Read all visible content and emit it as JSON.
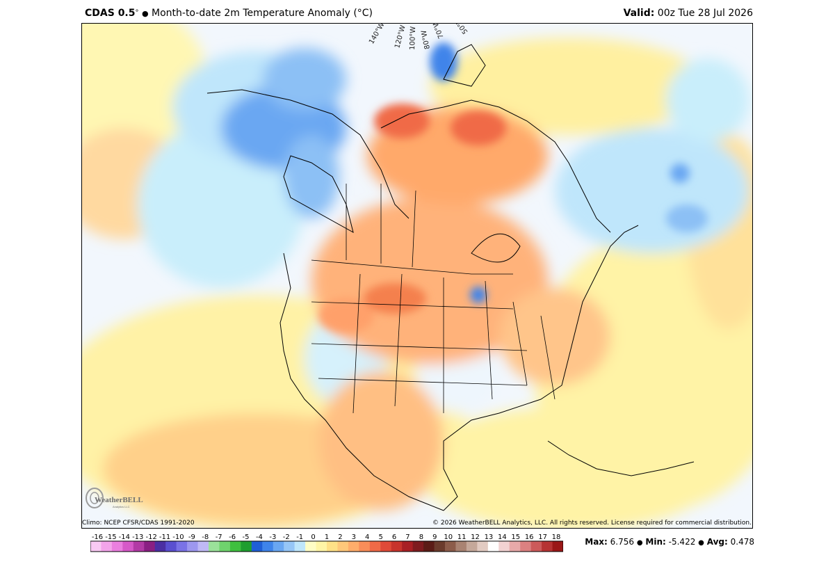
{
  "header": {
    "model": "CDAS 0.5",
    "degree": "°",
    "bullet": "●",
    "product": "Month-to-date 2m Temperature Anomaly (°C)",
    "valid_label": "Valid:",
    "valid_time": "00z Tue 28 Jul 2026"
  },
  "map": {
    "longitude_labels": [
      "140°W",
      "120°W",
      "100°W",
      "80°W",
      "70°W",
      "50°W"
    ],
    "colors": {
      "ocean_background": "#f2f7fd",
      "border": "#000000"
    }
  },
  "footer": {
    "climo": "Climo: NCEP CFSR/CDAS 1991-2020",
    "copyright": "© 2026 WeatherBELL Analytics, LLC. All rights reserved. License required for commercial distribution."
  },
  "logo": {
    "text": "WeatherBELL",
    "subtext": "Analytics LLC"
  },
  "colorbar": {
    "ticks": [
      "-16",
      "-15",
      "-14",
      "-13",
      "-12",
      "-11",
      "-10",
      "-9",
      "-8",
      "-7",
      "-6",
      "-5",
      "-4",
      "-3",
      "-2",
      "-1",
      "0",
      "1",
      "2",
      "3",
      "4",
      "5",
      "6",
      "7",
      "8",
      "9",
      "10",
      "11",
      "12",
      "13",
      "14",
      "15",
      "16",
      "17",
      "18"
    ],
    "colors": [
      "#f9c9f3",
      "#f3a4ea",
      "#ea7fdf",
      "#d659c8",
      "#b23aa5",
      "#8a1f83",
      "#4b2fa3",
      "#5a4fd0",
      "#7a72e6",
      "#9d97ef",
      "#bfb9f5",
      "#9be19a",
      "#6fd36d",
      "#3fc03f",
      "#1f9e2f",
      "#1f5fd6",
      "#3f84ea",
      "#6aa7f2",
      "#96c6f7",
      "#bfe6fb",
      "#fffdc5",
      "#fff5a6",
      "#ffe187",
      "#ffc87a",
      "#ffad6b",
      "#f98d59",
      "#f06a47",
      "#e04a38",
      "#c8342c",
      "#a82024",
      "#7e1c1f",
      "#5b1c16",
      "#6b3b2c",
      "#8c5c4a",
      "#a98372",
      "#c5a89a",
      "#e2cbc2",
      "#ffffff",
      "#f2d2d2",
      "#e7a9a9",
      "#dc8181",
      "#cc5a5a",
      "#b63333",
      "#9a1717"
    ]
  },
  "stats": {
    "max_label": "Max:",
    "max_value": "6.756",
    "min_label": "Min:",
    "min_value": "-5.422",
    "avg_label": "Avg:",
    "avg_value": "0.478",
    "sep": "●"
  }
}
